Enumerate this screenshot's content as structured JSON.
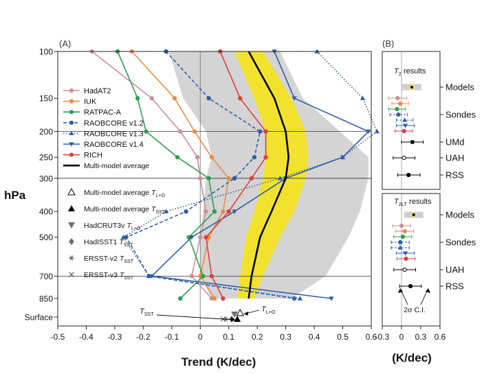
{
  "chart_data": [
    {
      "type": "line",
      "panel_label": "(A)",
      "xlabel": "Trend (K/dec)",
      "ylabel": "hPa",
      "xlim": [
        -0.5,
        0.6
      ],
      "x_ticks": [
        "-0.5",
        "-0.4",
        "-0.3",
        "-0.2",
        "-0.1",
        "0",
        "0.1",
        "0.2",
        "0.3",
        "0.4",
        "0.5",
        "0.6"
      ],
      "y_levels": [
        "100",
        "150",
        "200",
        "250",
        "300",
        "400",
        "500",
        "700",
        "850",
        "Surface"
      ],
      "pressure": [
        100,
        150,
        200,
        250,
        300,
        400,
        500,
        700,
        850
      ],
      "y_scale": "log (pressure)",
      "reference_line_x": 0,
      "horizontal_rules_at": [
        200,
        300,
        700
      ],
      "grey_band": {
        "lower": [
          -0.11,
          -0.06,
          0.02,
          0.04,
          0.02,
          0.01,
          0.0,
          0.0,
          0.04
        ],
        "upper": [
          0.28,
          0.36,
          0.49,
          0.59,
          0.59,
          0.56,
          0.52,
          0.44,
          0.32
        ]
      },
      "yellow_band": {
        "lower": [
          0.12,
          0.19,
          0.23,
          0.23,
          0.22,
          0.19,
          0.16,
          0.14,
          0.13
        ],
        "upper": [
          0.22,
          0.32,
          0.37,
          0.38,
          0.37,
          0.33,
          0.28,
          0.22,
          0.19
        ]
      },
      "series": [
        {
          "name": "HadAT2",
          "color": "#cc8f96",
          "marker": "circle",
          "dashed": false,
          "values": [
            -0.38,
            -0.17,
            -0.07,
            -0.01,
            0.0,
            0.02,
            0.0,
            -0.03,
            0.04
          ]
        },
        {
          "name": "IUK",
          "color": "#ef8a3f",
          "marker": "circle",
          "dashed": false,
          "values": [
            -0.24,
            -0.09,
            -0.02,
            0.04,
            0.1,
            0.08,
            0.03,
            0.0,
            0.05
          ]
        },
        {
          "name": "RATPAC-A",
          "color": "#2e9e4f",
          "marker": "circle",
          "dashed": false,
          "values": [
            -0.29,
            -0.22,
            -0.19,
            -0.08,
            0.03,
            0.05,
            -0.04,
            0.01,
            -0.07
          ]
        },
        {
          "name": "RAOBCORE v1.2",
          "color": "#2f5fa8",
          "marker": "circle",
          "dashed": true,
          "values": [
            -0.12,
            0.03,
            0.21,
            0.19,
            0.12,
            -0.05,
            -0.26,
            -0.18,
            0.33
          ]
        },
        {
          "name": "RAOBCORE v1.3",
          "color": "#2f5fa8",
          "marker": "triangle-up",
          "dashed": "dotted",
          "values": [
            0.41,
            0.57,
            0.62,
            0.5,
            0.28,
            -0.12,
            -0.27,
            -0.18,
            0.35
          ]
        },
        {
          "name": "RAOBCORE v1.4",
          "color": "#2f5fa8",
          "marker": "triangle-down",
          "dashed": false,
          "values": [
            0.26,
            0.33,
            0.59,
            0.5,
            0.3,
            0.12,
            -0.03,
            -0.17,
            0.46
          ]
        },
        {
          "name": "RICH",
          "color": "#de3f3f",
          "marker": "circle",
          "dashed": false,
          "values": [
            0.07,
            0.14,
            0.23,
            0.23,
            0.18,
            0.1,
            0.02,
            0.04,
            0.08
          ]
        },
        {
          "name": "Multi-model average",
          "color": "#000000",
          "marker": "none",
          "dashed": false,
          "values": [
            0.17,
            0.26,
            0.3,
            0.31,
            0.3,
            0.25,
            0.21,
            0.18,
            0.17
          ]
        }
      ],
      "legend": {
        "placement": "upper-left",
        "lines": [
          "HadAT2",
          "IUK",
          "RATPAC-A",
          "RAOBCORE v1.2",
          "RAOBCORE v1.3",
          "RAOBCORE v1.4",
          "RICH",
          "Multi-model average"
        ],
        "symbols": [
          {
            "marker": "triangle-open",
            "label": "Multi-model average T",
            "sub": "L+O"
          },
          {
            "marker": "triangle-filled",
            "label": "Multi-model average T",
            "sub": "SST"
          },
          {
            "marker": "triangle-down-grey",
            "label": "HadCRUT3v T",
            "sub": "L+O"
          },
          {
            "marker": "diamond-grey",
            "label": "HadISST1 T",
            "sub": "SST"
          },
          {
            "marker": "asterisk",
            "label": "ERSST-v2 T",
            "sub": "SST"
          },
          {
            "marker": "cross",
            "label": "ERSST-v3 T",
            "sub": "SST"
          }
        ]
      },
      "surface_points": [
        {
          "label": "Multi-model average T_L+O",
          "marker": "triangle-open",
          "x": 0.14
        },
        {
          "label": "Multi-model average T_SST",
          "marker": "triangle-filled",
          "x": 0.13
        },
        {
          "label": "HadCRUT3v T_L+O",
          "marker": "triangle-down-grey",
          "x": 0.12
        },
        {
          "label": "HadISST1 T_SST",
          "marker": "diamond-grey",
          "x": 0.11
        },
        {
          "label": "ERSST-v2 T_SST",
          "marker": "asterisk",
          "x": 0.09
        },
        {
          "label": "ERSST-v3 T_SST",
          "marker": "cross",
          "x": 0.08
        }
      ],
      "annotations": [
        {
          "text": "T",
          "sub": "SST",
          "points_to_x": 0.13
        },
        {
          "text": "T",
          "sub": "L+O",
          "points_to_x": 0.14
        }
      ]
    },
    {
      "type": "scatter",
      "panel_label": "(B)",
      "xlabel": "(K/dec)",
      "xlim": [
        -0.3,
        0.6
      ],
      "x_ticks": [
        "-0.3",
        "0",
        "0.3",
        "0.6"
      ],
      "subpanels": [
        {
          "title": "T",
          "title_sub": "2",
          "title_suffix": " results",
          "groups": [
            "Models",
            "Sondes",
            "UMd",
            "UAH",
            "RSS"
          ],
          "rows": [
            {
              "group": "Models",
              "type": "band",
              "center": 0.16,
              "lo": 0.0,
              "hi": 0.31
            },
            {
              "series": "HadAT2",
              "color": "#cc8f96",
              "marker": "circle",
              "value": -0.06,
              "lo": -0.2,
              "hi": 0.08
            },
            {
              "series": "IUK",
              "color": "#ef8a3f",
              "marker": "circle",
              "value": -0.02,
              "lo": -0.15,
              "hi": 0.11
            },
            {
              "series": "RATPAC-A",
              "color": "#2e9e4f",
              "marker": "circle",
              "value": -0.07,
              "lo": -0.2,
              "hi": 0.06
            },
            {
              "series": "RAOBCORE v1.2",
              "color": "#2f5fa8",
              "marker": "circle",
              "value": -0.05,
              "lo": -0.18,
              "hi": 0.09,
              "dashed": true
            },
            {
              "series": "RAOBCORE v1.3",
              "color": "#2f5fa8",
              "marker": "triangle-up",
              "value": 0.05,
              "lo": -0.08,
              "hi": 0.18,
              "dashed": true
            },
            {
              "series": "RAOBCORE v1.4",
              "color": "#2f5fa8",
              "marker": "triangle-down",
              "value": 0.06,
              "lo": -0.08,
              "hi": 0.2
            },
            {
              "series": "RICH",
              "color": "#de3f3f",
              "marker": "circle",
              "value": 0.04,
              "lo": -0.1,
              "hi": 0.17
            },
            {
              "group": "UMd",
              "color": "#000000",
              "marker": "square",
              "value": 0.17,
              "lo": 0.0,
              "hi": 0.34
            },
            {
              "group": "UAH",
              "color": "#000000",
              "marker": "circle-open",
              "value": 0.04,
              "lo": -0.13,
              "hi": 0.21
            },
            {
              "group": "RSS",
              "color": "#000000",
              "marker": "circle",
              "value": 0.11,
              "lo": -0.06,
              "hi": 0.29
            }
          ]
        },
        {
          "title": "T",
          "title_sub": "2LT",
          "title_suffix": " results",
          "groups": [
            "Models",
            "Sondes",
            "UAH",
            "RSS"
          ],
          "rows": [
            {
              "group": "Models",
              "type": "band",
              "center": 0.19,
              "lo": 0.04,
              "hi": 0.34
            },
            {
              "series": "HadAT2",
              "color": "#cc8f96",
              "marker": "circle",
              "value": 0.0,
              "lo": -0.14,
              "hi": 0.14
            },
            {
              "series": "IUK",
              "color": "#ef8a3f",
              "marker": "circle",
              "value": 0.05,
              "lo": -0.09,
              "hi": 0.19
            },
            {
              "series": "RATPAC-A",
              "color": "#2e9e4f",
              "marker": "circle",
              "value": 0.02,
              "lo": -0.12,
              "hi": 0.16
            },
            {
              "series": "RAOBCORE v1.2",
              "color": "#2f5fa8",
              "marker": "circle",
              "value": -0.02,
              "lo": -0.16,
              "hi": 0.12,
              "dashed": true
            },
            {
              "series": "RAOBCORE v1.3",
              "color": "#2f5fa8",
              "marker": "triangle-up",
              "value": -0.02,
              "lo": -0.16,
              "hi": 0.12,
              "dashed": true
            },
            {
              "series": "RAOBCORE v1.4",
              "color": "#2f5fa8",
              "marker": "triangle-down",
              "value": 0.06,
              "lo": -0.08,
              "hi": 0.2
            },
            {
              "series": "RICH",
              "color": "#de3f3f",
              "marker": "circle",
              "value": 0.07,
              "lo": -0.07,
              "hi": 0.21
            },
            {
              "group": "UAH",
              "color": "#000000",
              "marker": "circle-open",
              "value": 0.05,
              "lo": -0.12,
              "hi": 0.22
            },
            {
              "group": "RSS",
              "color": "#000000",
              "marker": "circle",
              "value": 0.14,
              "lo": -0.03,
              "hi": 0.31
            }
          ],
          "annotation": "2σ C.I."
        }
      ]
    }
  ]
}
